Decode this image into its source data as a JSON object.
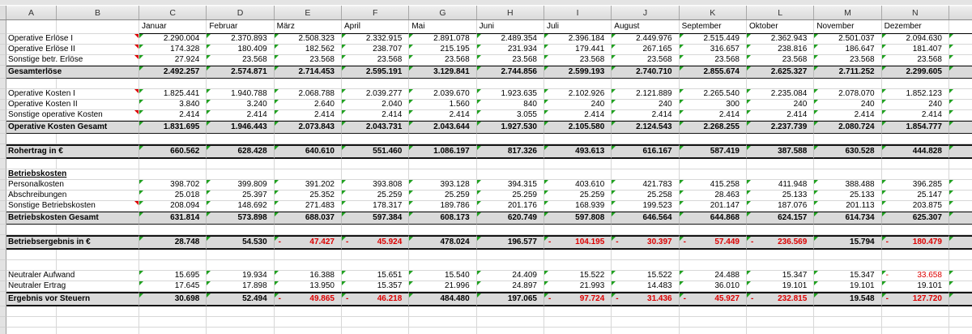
{
  "sheet": {
    "column_headers": [
      "A",
      "B",
      "C",
      "D",
      "E",
      "F",
      "G",
      "H",
      "I",
      "J",
      "K",
      "L",
      "M",
      "N"
    ],
    "months": [
      "Januar",
      "Februar",
      "März",
      "April",
      "Mai",
      "Juni",
      "Juli",
      "August",
      "September",
      "Oktober",
      "November",
      "Dezember"
    ],
    "colors": {
      "negative_text": "#dd0000",
      "total_band_fill": "#dadada",
      "error_indicator_green": "#1fa11f",
      "comment_indicator_red": "#dd0000",
      "header_fill": "#e3e3e3"
    },
    "rows": [
      {
        "kind": "data",
        "label": "Operative Erlöse I",
        "comment": true,
        "values": [
          "2.290.004",
          "2.370.893",
          "2.508.323",
          "2.332.915",
          "2.891.078",
          "2.489.354",
          "2.396.184",
          "2.449.976",
          "2.515.449",
          "2.362.943",
          "2.501.037",
          "2.094.630"
        ]
      },
      {
        "kind": "data",
        "label": "Operative Erlöse II",
        "comment": true,
        "values": [
          "174.328",
          "180.409",
          "182.562",
          "238.707",
          "215.195",
          "231.934",
          "179.441",
          "267.165",
          "316.657",
          "238.816",
          "186.647",
          "181.407"
        ]
      },
      {
        "kind": "data",
        "label": "Sonstige betr. Erlöse",
        "comment": true,
        "values": [
          "27.924",
          "23.568",
          "23.568",
          "23.568",
          "23.568",
          "23.568",
          "23.568",
          "23.568",
          "23.568",
          "23.568",
          "23.568",
          "23.568"
        ]
      },
      {
        "kind": "total",
        "label": "Gesamterlöse",
        "values": [
          "2.492.257",
          "2.574.871",
          "2.714.453",
          "2.595.191",
          "3.129.841",
          "2.744.856",
          "2.599.193",
          "2.740.710",
          "2.855.674",
          "2.625.327",
          "2.711.252",
          "2.299.605"
        ]
      },
      {
        "kind": "blank"
      },
      {
        "kind": "data",
        "label": "Operative Kosten I",
        "comment": true,
        "values": [
          "1.825.441",
          "1.940.788",
          "2.068.788",
          "2.039.277",
          "2.039.670",
          "1.923.635",
          "2.102.926",
          "2.121.889",
          "2.265.540",
          "2.235.084",
          "2.078.070",
          "1.852.123"
        ]
      },
      {
        "kind": "data",
        "label": "Operative Kosten II",
        "values": [
          "3.840",
          "3.240",
          "2.640",
          "2.040",
          "1.560",
          "840",
          "240",
          "240",
          "300",
          "240",
          "240",
          "240"
        ]
      },
      {
        "kind": "data",
        "label": "Sonstige operative Kosten",
        "comment": true,
        "values": [
          "2.414",
          "2.414",
          "2.414",
          "2.414",
          "2.414",
          "3.055",
          "2.414",
          "2.414",
          "2.414",
          "2.414",
          "2.414",
          "2.414"
        ]
      },
      {
        "kind": "total",
        "label": "Operative Kosten Gesamt",
        "values": [
          "1.831.695",
          "1.946.443",
          "2.073.843",
          "2.043.731",
          "2.043.644",
          "1.927.530",
          "2.105.580",
          "2.124.543",
          "2.268.255",
          "2.237.739",
          "2.080.724",
          "1.854.777"
        ]
      },
      {
        "kind": "blank"
      },
      {
        "kind": "total2",
        "label": "Rohertrag in €",
        "values": [
          "660.562",
          "628.428",
          "640.610",
          "551.460",
          "1.086.197",
          "817.326",
          "493.613",
          "616.167",
          "587.419",
          "387.588",
          "630.528",
          "444.828"
        ]
      },
      {
        "kind": "blank"
      },
      {
        "kind": "section",
        "label": "Betriebskosten"
      },
      {
        "kind": "data",
        "label": "Personalkosten",
        "values": [
          "398.702",
          "399.809",
          "391.202",
          "393.808",
          "393.128",
          "394.315",
          "403.610",
          "421.783",
          "415.258",
          "411.948",
          "388.488",
          "396.285"
        ]
      },
      {
        "kind": "data",
        "label": "Abschreibungen",
        "values": [
          "25.018",
          "25.397",
          "25.352",
          "25.259",
          "25.259",
          "25.259",
          "25.259",
          "25.258",
          "28.463",
          "25.133",
          "25.133",
          "25.147"
        ]
      },
      {
        "kind": "data",
        "label": "Sonstige Betriebskosten",
        "comment": true,
        "values": [
          "208.094",
          "148.692",
          "271.483",
          "178.317",
          "189.786",
          "201.176",
          "168.939",
          "199.523",
          "201.147",
          "187.076",
          "201.113",
          "203.875"
        ]
      },
      {
        "kind": "total",
        "label": "Betriebskosten Gesamt",
        "values": [
          "631.814",
          "573.898",
          "688.037",
          "597.384",
          "608.173",
          "620.749",
          "597.808",
          "646.564",
          "644.868",
          "624.157",
          "614.734",
          "625.307"
        ]
      },
      {
        "kind": "blank"
      },
      {
        "kind": "total2",
        "label": "Betriebsergebnis in €",
        "values": [
          "28.748",
          "54.530",
          "-47.427",
          "-45.924",
          "478.024",
          "196.577",
          "-104.195",
          "-30.397",
          "-57.449",
          "-236.569",
          "15.794",
          "-180.479"
        ]
      },
      {
        "kind": "blank"
      },
      {
        "kind": "blank"
      },
      {
        "kind": "data",
        "label": "Neutraler Aufwand",
        "values": [
          "15.695",
          "19.934",
          "16.388",
          "15.651",
          "15.540",
          "24.409",
          "15.522",
          "15.522",
          "24.488",
          "15.347",
          "15.347",
          "-33.658"
        ]
      },
      {
        "kind": "data",
        "label": "Neutraler Ertrag",
        "values": [
          "17.645",
          "17.898",
          "13.950",
          "15.357",
          "21.996",
          "24.897",
          "21.993",
          "14.483",
          "36.010",
          "19.101",
          "19.101",
          "19.101"
        ]
      },
      {
        "kind": "total2",
        "label": "Ergebnis vor Steuern",
        "values": [
          "30.698",
          "52.494",
          "-49.865",
          "-46.218",
          "484.480",
          "197.065",
          "-97.724",
          "-31.436",
          "-45.927",
          "-232.815",
          "19.548",
          "-127.720"
        ]
      },
      {
        "kind": "blank"
      },
      {
        "kind": "blank"
      },
      {
        "kind": "blank"
      }
    ]
  }
}
